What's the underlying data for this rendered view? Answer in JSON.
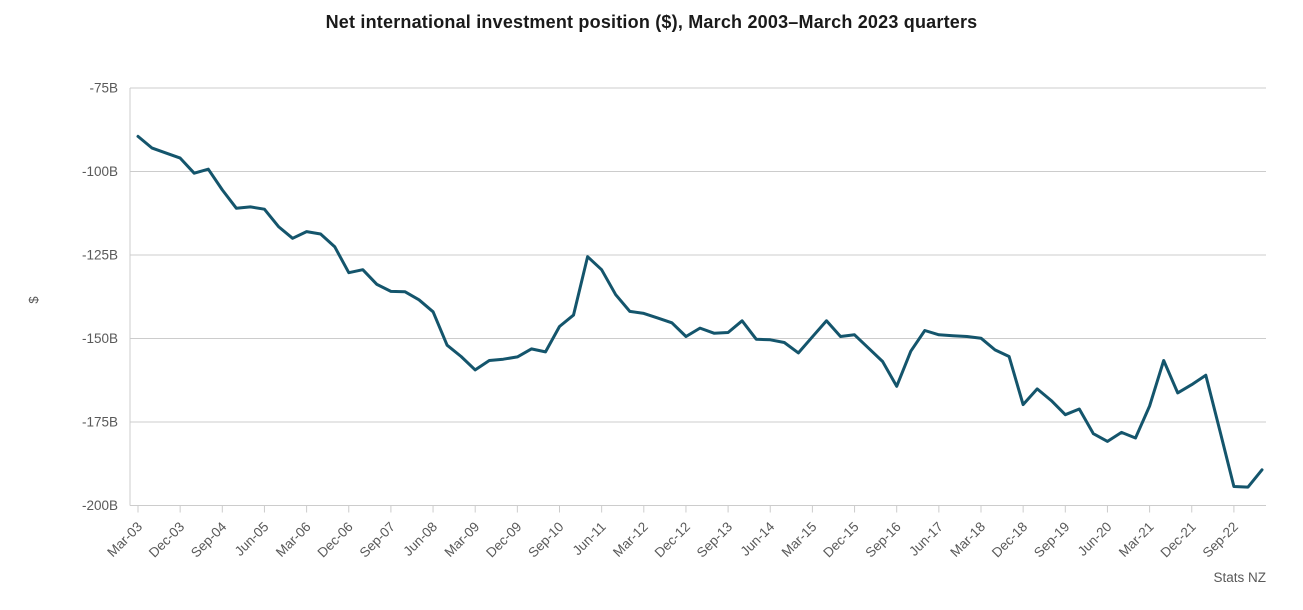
{
  "chart_data": {
    "type": "line",
    "title": "Net international investment position ($), March 2003–March 2023 quarters",
    "ylabel": "$",
    "source": "Stats NZ",
    "x_tick_every": 3,
    "ylim": [
      -200,
      -75
    ],
    "y_ticks": [
      -75,
      -100,
      -125,
      -150,
      -175,
      -200
    ],
    "y_tick_labels": [
      "-75B",
      "-100B",
      "-125B",
      "-150B",
      "-175B",
      "-200B"
    ],
    "grid": "horizontal",
    "legend": "none",
    "line_color": "#14556c",
    "axis_color": "#cccccc",
    "label_color": "#595959",
    "categories": [
      "Mar-03",
      "Jun-03",
      "Sep-03",
      "Dec-03",
      "Mar-04",
      "Jun-04",
      "Sep-04",
      "Dec-04",
      "Mar-05",
      "Jun-05",
      "Sep-05",
      "Dec-05",
      "Mar-06",
      "Jun-06",
      "Sep-06",
      "Dec-06",
      "Mar-07",
      "Jun-07",
      "Sep-07",
      "Dec-07",
      "Mar-08",
      "Jun-08",
      "Sep-08",
      "Dec-08",
      "Mar-09",
      "Jun-09",
      "Sep-09",
      "Dec-09",
      "Mar-10",
      "Jun-10",
      "Sep-10",
      "Dec-10",
      "Mar-11",
      "Jun-11",
      "Sep-11",
      "Dec-11",
      "Mar-12",
      "Jun-12",
      "Sep-12",
      "Dec-12",
      "Mar-13",
      "Jun-13",
      "Sep-13",
      "Dec-13",
      "Mar-14",
      "Jun-14",
      "Sep-14",
      "Dec-14",
      "Mar-15",
      "Jun-15",
      "Sep-15",
      "Dec-15",
      "Mar-16",
      "Jun-16",
      "Sep-16",
      "Dec-16",
      "Mar-17",
      "Jun-17",
      "Sep-17",
      "Dec-17",
      "Mar-18",
      "Jun-18",
      "Sep-18",
      "Dec-18",
      "Mar-19",
      "Jun-19",
      "Sep-19",
      "Dec-19",
      "Mar-20",
      "Jun-20",
      "Sep-20",
      "Dec-20",
      "Mar-21",
      "Jun-21",
      "Sep-21",
      "Dec-21",
      "Mar-22",
      "Jun-22",
      "Sep-22",
      "Dec-22",
      "Mar-23"
    ],
    "values": [
      -89.5,
      -93.0,
      -94.5,
      -96.0,
      -100.5,
      -99.3,
      -105.5,
      -111.0,
      -110.6,
      -111.3,
      -116.5,
      -120.0,
      -118.0,
      -118.7,
      -122.5,
      -130.3,
      -129.4,
      -133.8,
      -135.9,
      -136.0,
      -138.4,
      -142.0,
      -152.0,
      -155.4,
      -159.4,
      -156.6,
      -156.2,
      -155.5,
      -153.1,
      -154.0,
      -146.4,
      -143.0,
      -125.5,
      -129.4,
      -136.9,
      -141.9,
      -142.5,
      -143.9,
      -145.3,
      -149.4,
      -146.9,
      -148.4,
      -148.2,
      -144.7,
      -150.2,
      -150.4,
      -151.2,
      -154.3,
      -149.5,
      -144.7,
      -149.4,
      -148.9,
      -152.9,
      -156.9,
      -164.3,
      -153.8,
      -147.6,
      -148.9,
      -149.2,
      -149.4,
      -149.9,
      -153.4,
      -155.4,
      -169.8,
      -165.1,
      -168.6,
      -172.8,
      -171.1,
      -178.5,
      -180.8,
      -178.1,
      -179.8,
      -170.2,
      -156.6,
      -166.3,
      -163.8,
      -161.0,
      -177.5,
      -194.3,
      -194.5,
      -189.3
    ]
  }
}
